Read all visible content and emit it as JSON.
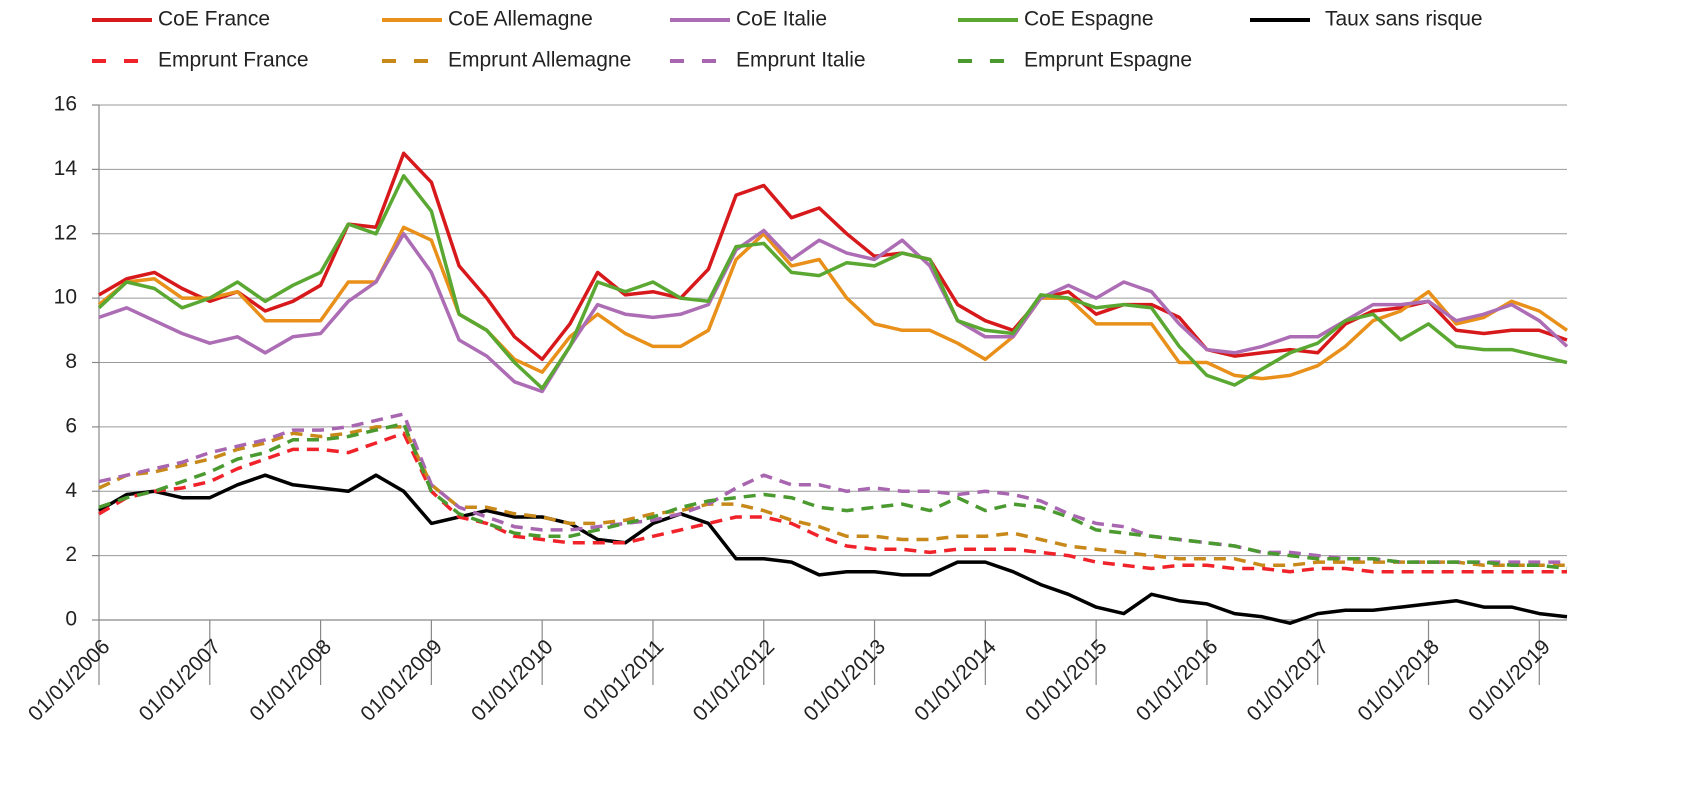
{
  "chart_data": {
    "type": "line",
    "categories": [
      "01/01/2006",
      null,
      null,
      null,
      "01/01/2007",
      null,
      null,
      null,
      "01/01/2008",
      null,
      null,
      null,
      "01/01/2009",
      null,
      null,
      null,
      "01/01/2010",
      null,
      null,
      null,
      "01/01/2011",
      null,
      null,
      null,
      "01/01/2012",
      null,
      null,
      null,
      "01/01/2013",
      null,
      null,
      null,
      "01/01/2014",
      null,
      null,
      null,
      "01/01/2015",
      null,
      null,
      null,
      "01/01/2016",
      null,
      null,
      null,
      "01/01/2017",
      null,
      null,
      null,
      "01/01/2018",
      null,
      null,
      null,
      "01/01/2019",
      null
    ],
    "ylim": [
      0,
      16
    ],
    "yticks": [
      0,
      2,
      4,
      6,
      8,
      10,
      12,
      14,
      16
    ],
    "grid": true,
    "legend": "top",
    "series": [
      {
        "name": "CoE France",
        "color": "#d7191c",
        "dashed": false,
        "values": [
          10.1,
          10.6,
          10.8,
          10.3,
          9.9,
          10.2,
          9.6,
          9.9,
          10.4,
          12.3,
          12.2,
          14.5,
          13.6,
          11.0,
          10.0,
          8.8,
          8.1,
          9.2,
          10.8,
          10.1,
          10.2,
          10.0,
          10.9,
          13.2,
          13.5,
          12.5,
          12.8,
          12.0,
          11.3,
          11.4,
          11.2,
          9.8,
          9.3,
          9.0,
          10.0,
          10.2,
          9.5,
          9.8,
          9.8,
          9.4,
          8.4,
          8.2,
          8.3,
          8.4,
          8.3,
          9.2,
          9.6,
          9.7,
          9.9,
          9.0,
          8.9,
          9.0,
          9.0,
          8.7
        ]
      },
      {
        "name": "CoE Allemagne",
        "color": "#e8901a",
        "dashed": false,
        "values": [
          9.8,
          10.5,
          10.6,
          10.0,
          10.0,
          10.2,
          9.3,
          9.3,
          9.3,
          10.5,
          10.5,
          12.2,
          11.8,
          9.5,
          9.0,
          8.1,
          7.7,
          8.8,
          9.5,
          8.9,
          8.5,
          8.5,
          9.0,
          11.2,
          12.0,
          11.0,
          11.2,
          10.0,
          9.2,
          9.0,
          9.0,
          8.6,
          8.1,
          8.8,
          10.0,
          10.0,
          9.2,
          9.2,
          9.2,
          8.0,
          8.0,
          7.6,
          7.5,
          7.6,
          7.9,
          8.5,
          9.3,
          9.6,
          10.2,
          9.2,
          9.4,
          9.9,
          9.6,
          9.0
        ]
      },
      {
        "name": "CoE Italie",
        "color": "#ad6db5",
        "dashed": false,
        "values": [
          9.4,
          9.7,
          9.3,
          8.9,
          8.6,
          8.8,
          8.3,
          8.8,
          8.9,
          9.9,
          10.5,
          12.0,
          10.8,
          8.7,
          8.2,
          7.4,
          7.1,
          8.5,
          9.8,
          9.5,
          9.4,
          9.5,
          9.8,
          11.5,
          12.1,
          11.2,
          11.8,
          11.4,
          11.2,
          11.8,
          11.0,
          9.3,
          8.8,
          8.8,
          10.0,
          10.4,
          10.0,
          10.5,
          10.2,
          9.2,
          8.4,
          8.3,
          8.5,
          8.8,
          8.8,
          9.3,
          9.8,
          9.8,
          9.9,
          9.3,
          9.5,
          9.8,
          9.3,
          8.5
        ]
      },
      {
        "name": "CoE Espagne",
        "color": "#5aa832",
        "dashed": false,
        "values": [
          9.7,
          10.5,
          10.3,
          9.7,
          10.0,
          10.5,
          9.9,
          10.4,
          10.8,
          12.3,
          12.0,
          13.8,
          12.7,
          9.5,
          9.0,
          8.0,
          7.2,
          8.5,
          10.5,
          10.2,
          10.5,
          10.0,
          9.9,
          11.6,
          11.7,
          10.8,
          10.7,
          11.1,
          11.0,
          11.4,
          11.2,
          9.3,
          9.0,
          8.9,
          10.1,
          10.0,
          9.7,
          9.8,
          9.7,
          8.5,
          7.6,
          7.3,
          7.8,
          8.3,
          8.6,
          9.3,
          9.5,
          8.7,
          9.2,
          8.5,
          8.4,
          8.4,
          8.2,
          8.0
        ]
      },
      {
        "name": "Taux sans risque",
        "color": "#000000",
        "dashed": false,
        "values": [
          3.4,
          3.9,
          4.0,
          3.8,
          3.8,
          4.2,
          4.5,
          4.2,
          4.1,
          4.0,
          4.5,
          4.0,
          3.0,
          3.2,
          3.4,
          3.2,
          3.2,
          3.0,
          2.5,
          2.4,
          3.0,
          3.3,
          3.0,
          1.9,
          1.9,
          1.8,
          1.4,
          1.5,
          1.5,
          1.4,
          1.4,
          1.8,
          1.8,
          1.5,
          1.1,
          0.8,
          0.4,
          0.2,
          0.8,
          0.6,
          0.5,
          0.2,
          0.1,
          -0.1,
          0.2,
          0.3,
          0.3,
          0.4,
          0.5,
          0.6,
          0.4,
          0.4,
          0.2,
          0.1
        ]
      },
      {
        "name": "Emprunt France",
        "color": "#f0222a",
        "dashed": true,
        "values": [
          3.3,
          3.8,
          4.0,
          4.1,
          4.3,
          4.7,
          5.0,
          5.3,
          5.3,
          5.2,
          5.5,
          5.8,
          4.0,
          3.2,
          3.0,
          2.6,
          2.5,
          2.4,
          2.4,
          2.4,
          2.6,
          2.8,
          3.0,
          3.2,
          3.2,
          3.0,
          2.6,
          2.3,
          2.2,
          2.2,
          2.1,
          2.2,
          2.2,
          2.2,
          2.1,
          2.0,
          1.8,
          1.7,
          1.6,
          1.7,
          1.7,
          1.6,
          1.6,
          1.5,
          1.6,
          1.6,
          1.5,
          1.5,
          1.5,
          1.5,
          1.5,
          1.5,
          1.5,
          1.5
        ]
      },
      {
        "name": "Emprunt Allemagne",
        "color": "#c8891a",
        "dashed": true,
        "values": [
          4.1,
          4.5,
          4.6,
          4.8,
          5.0,
          5.3,
          5.5,
          5.8,
          5.7,
          5.8,
          6.0,
          6.0,
          4.2,
          3.5,
          3.5,
          3.3,
          3.2,
          3.0,
          3.0,
          3.1,
          3.3,
          3.4,
          3.6,
          3.6,
          3.4,
          3.1,
          2.9,
          2.6,
          2.6,
          2.5,
          2.5,
          2.6,
          2.6,
          2.7,
          2.5,
          2.3,
          2.2,
          2.1,
          2.0,
          1.9,
          1.9,
          1.9,
          1.7,
          1.7,
          1.8,
          1.8,
          1.8,
          1.8,
          1.8,
          1.8,
          1.7,
          1.7,
          1.7,
          1.7
        ]
      },
      {
        "name": "Emprunt Italie",
        "color": "#a865b0",
        "dashed": true,
        "values": [
          4.3,
          4.5,
          4.7,
          4.9,
          5.2,
          5.4,
          5.6,
          5.9,
          5.9,
          6.0,
          6.2,
          6.4,
          4.2,
          3.5,
          3.2,
          2.9,
          2.8,
          2.8,
          2.9,
          3.0,
          3.1,
          3.3,
          3.6,
          4.1,
          4.5,
          4.2,
          4.2,
          4.0,
          4.1,
          4.0,
          4.0,
          3.9,
          4.0,
          3.9,
          3.7,
          3.3,
          3.0,
          2.9,
          2.6,
          2.5,
          2.4,
          2.3,
          2.1,
          2.1,
          2.0,
          1.9,
          1.9,
          1.8,
          1.8,
          1.8,
          1.8,
          1.8,
          1.8,
          1.8
        ]
      },
      {
        "name": "Emprunt Espagne",
        "color": "#4a9a30",
        "dashed": true,
        "values": [
          3.5,
          3.8,
          4.0,
          4.3,
          4.6,
          5.0,
          5.2,
          5.6,
          5.6,
          5.7,
          5.9,
          6.1,
          4.0,
          3.3,
          3.0,
          2.7,
          2.6,
          2.6,
          2.8,
          3.0,
          3.2,
          3.5,
          3.7,
          3.8,
          3.9,
          3.8,
          3.5,
          3.4,
          3.5,
          3.6,
          3.4,
          3.8,
          3.4,
          3.6,
          3.5,
          3.2,
          2.8,
          2.7,
          2.6,
          2.5,
          2.4,
          2.3,
          2.1,
          2.0,
          1.9,
          1.9,
          1.9,
          1.8,
          1.8,
          1.8,
          1.8,
          1.7,
          1.7,
          1.6
        ]
      }
    ]
  }
}
